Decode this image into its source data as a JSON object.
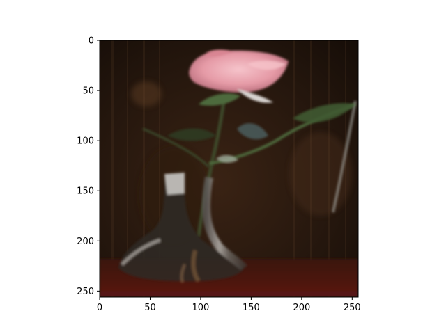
{
  "chart_data": {
    "type": "heatmap",
    "title": "",
    "xlabel": "",
    "ylabel": "",
    "xlim": [
      0,
      256
    ],
    "ylim": [
      256,
      0
    ],
    "x_ticks": [
      0,
      50,
      100,
      150,
      200,
      250
    ],
    "y_ticks": [
      0,
      50,
      100,
      150,
      200,
      250
    ],
    "x_tick_labels": [
      "0",
      "50",
      "100",
      "150",
      "200",
      "250"
    ],
    "y_tick_labels": [
      "0",
      "50",
      "100",
      "150",
      "200",
      "250"
    ],
    "grid": false,
    "image_content": "rose-in-glass-vase",
    "colors": {
      "background_dark": "#1c120b",
      "background_warm": "#3a2314",
      "rose_pink": "#e59aa6",
      "rose_highlight": "#f6c4cb",
      "leaf_green": "#4e6b3c",
      "vase_glass": "#8d8a86",
      "table_red": "#4a1510"
    }
  }
}
